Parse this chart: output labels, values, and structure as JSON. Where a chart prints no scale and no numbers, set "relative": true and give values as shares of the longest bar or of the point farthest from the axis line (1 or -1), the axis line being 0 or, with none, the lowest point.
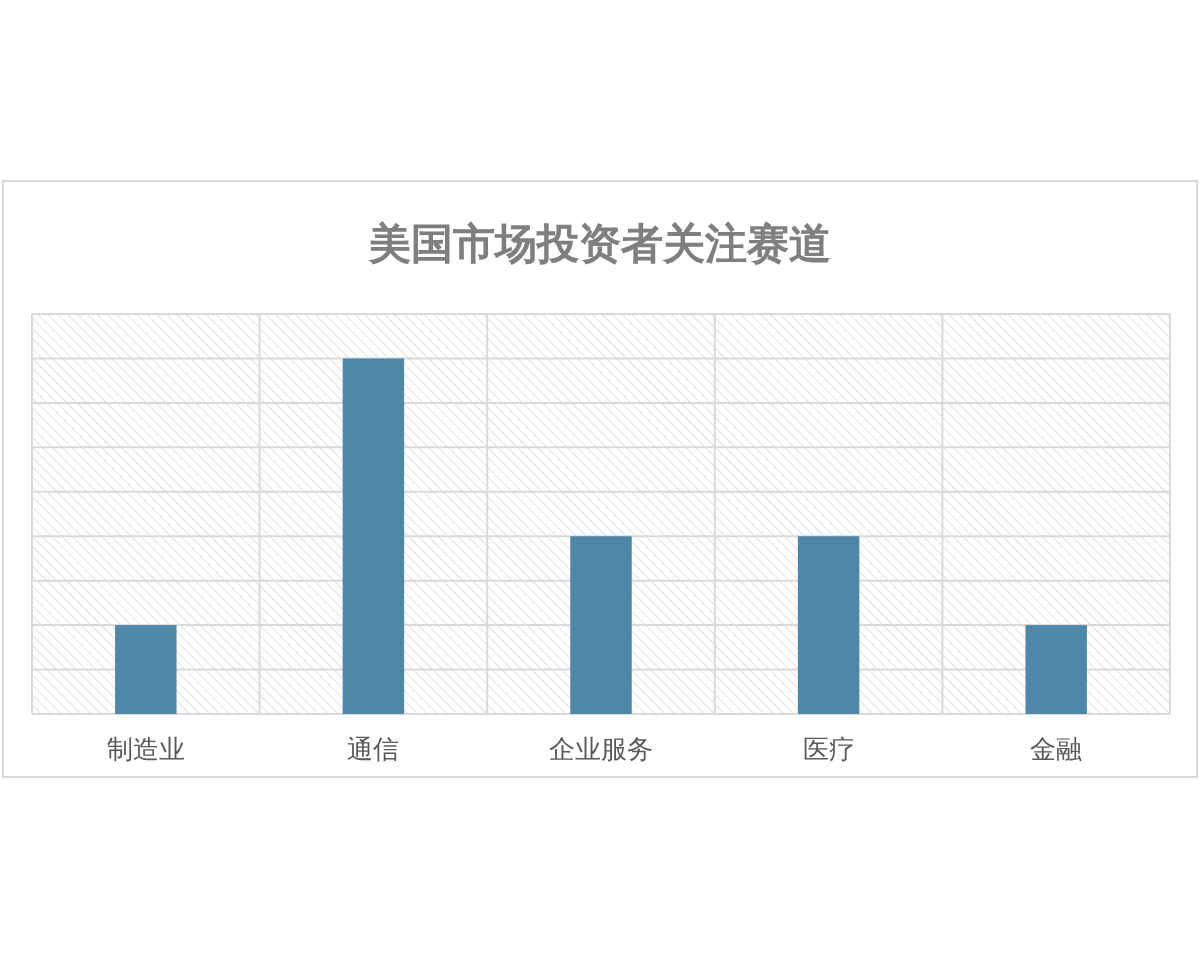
{
  "chart_data": {
    "type": "bar",
    "title": "美国市场投资者关注赛道",
    "categories": [
      "制造业",
      "通信",
      "企业服务",
      "医疗",
      "金融"
    ],
    "values": [
      0.25,
      1,
      0.5,
      0.5,
      0.25
    ],
    "color": "#4f87a8",
    "relative": true,
    "grid": true
  }
}
